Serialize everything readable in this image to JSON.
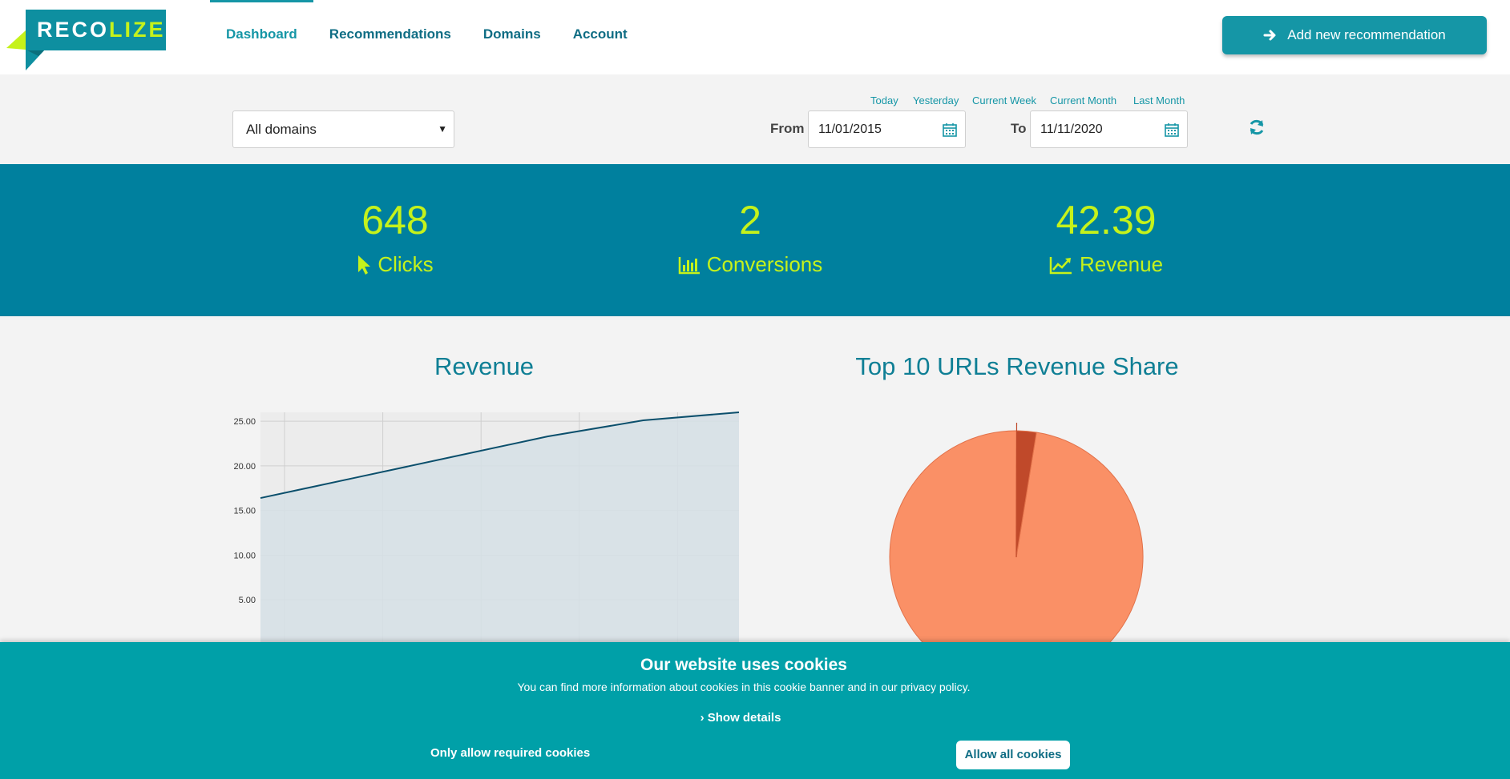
{
  "brand": {
    "logo_part1": "RECO",
    "logo_part2": "LIZE"
  },
  "nav": {
    "items": [
      {
        "label": "Dashboard",
        "active": true
      },
      {
        "label": "Recommendations",
        "active": false
      },
      {
        "label": "Domains",
        "active": false
      },
      {
        "label": "Account",
        "active": false
      }
    ]
  },
  "header": {
    "add_button_label": "Add new recommendation"
  },
  "filters": {
    "domain_selected": "All domains",
    "quick_ranges": [
      "Today",
      "Yesterday",
      "Current Week",
      "Current Month",
      "Last Month"
    ],
    "from_label": "From",
    "from_value": "11/01/2015",
    "to_label": "To",
    "to_value": "11/11/2020"
  },
  "stats": [
    {
      "value": "648",
      "label": "Clicks",
      "icon": "pointer-icon"
    },
    {
      "value": "2",
      "label": "Conversions",
      "icon": "bar-chart-icon"
    },
    {
      "value": "42.39",
      "label": "Revenue",
      "icon": "line-chart-icon"
    }
  ],
  "chart_data": [
    {
      "type": "area",
      "title": "Revenue",
      "xlabel": "",
      "ylabel": "",
      "y_ticks": [
        "25.00",
        "20.00",
        "15.00",
        "10.00",
        "5.00"
      ],
      "ylim": [
        0,
        26
      ],
      "x": [
        0,
        1,
        2,
        3,
        4,
        5
      ],
      "values": [
        16.4,
        18.7,
        21.0,
        23.3,
        25.1,
        26.0
      ],
      "grid": true
    },
    {
      "type": "pie",
      "title": "Top 10 URLs Revenue Share",
      "slices": [
        {
          "share": 0.975,
          "color": "#fa9066"
        },
        {
          "share": 0.025,
          "color": "#c0492a"
        }
      ]
    }
  ],
  "colors": {
    "accent": "#1596a6",
    "stats_bg": "#00809e",
    "stats_text": "#c5f21b",
    "cookie_bg": "#00a0a8"
  },
  "cookie": {
    "title": "Our website uses cookies",
    "text": "You can find more information about cookies in this cookie banner and in our privacy policy.",
    "details_label": "Show details",
    "required_label": "Only allow required cookies",
    "allow_label": "Allow all cookies"
  }
}
